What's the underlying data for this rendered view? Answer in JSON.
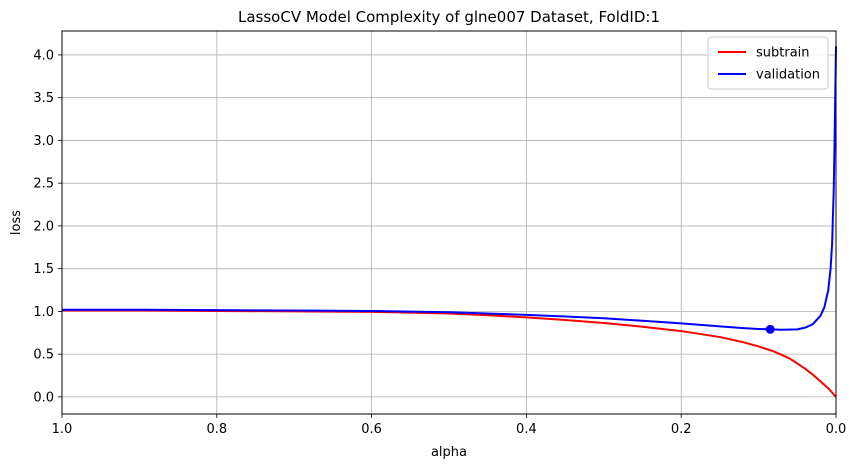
{
  "chart_data": {
    "type": "line",
    "title": "LassoCV Model Complexity of glne007 Dataset, FoldID:1",
    "xlabel": "alpha",
    "ylabel": "loss",
    "xlim": [
      1.0,
      0.0
    ],
    "ylim": [
      -0.2,
      4.28
    ],
    "x_inverted": true,
    "grid": true,
    "legend_position": "top-right",
    "xticks": [
      1.0,
      0.8,
      0.6,
      0.4,
      0.2,
      0.0
    ],
    "xtick_labels": [
      "1.0",
      "0.8",
      "0.6",
      "0.4",
      "0.2",
      "0.0"
    ],
    "yticks": [
      0.0,
      0.5,
      1.0,
      1.5,
      2.0,
      2.5,
      3.0,
      3.5,
      4.0
    ],
    "ytick_labels": [
      "0.0",
      "0.5",
      "1.0",
      "1.5",
      "2.0",
      "2.5",
      "3.0",
      "3.5",
      "4.0"
    ],
    "series": [
      {
        "name": "subtrain",
        "color": "#ff0000",
        "x": [
          1.0,
          0.9,
          0.8,
          0.7,
          0.6,
          0.5,
          0.45,
          0.4,
          0.35,
          0.3,
          0.25,
          0.2,
          0.15,
          0.12,
          0.1,
          0.08,
          0.06,
          0.05,
          0.04,
          0.03,
          0.02,
          0.01,
          0.005,
          0.0
        ],
        "y": [
          1.01,
          1.01,
          1.005,
          1.0,
          0.995,
          0.975,
          0.955,
          0.93,
          0.9,
          0.865,
          0.82,
          0.77,
          0.7,
          0.64,
          0.59,
          0.53,
          0.45,
          0.39,
          0.33,
          0.26,
          0.18,
          0.1,
          0.05,
          0.0
        ]
      },
      {
        "name": "validation",
        "color": "#0000ff",
        "x": [
          1.0,
          0.9,
          0.8,
          0.7,
          0.6,
          0.5,
          0.45,
          0.4,
          0.35,
          0.3,
          0.25,
          0.2,
          0.15,
          0.12,
          0.1,
          0.085,
          0.07,
          0.05,
          0.04,
          0.03,
          0.02,
          0.015,
          0.01,
          0.007,
          0.005,
          0.003,
          0.002,
          0.001,
          0.0
        ],
        "y": [
          1.02,
          1.02,
          1.015,
          1.01,
          1.005,
          0.99,
          0.975,
          0.96,
          0.94,
          0.92,
          0.89,
          0.86,
          0.825,
          0.805,
          0.795,
          0.79,
          0.785,
          0.79,
          0.81,
          0.85,
          0.95,
          1.05,
          1.25,
          1.5,
          1.8,
          2.4,
          2.9,
          3.5,
          4.1
        ]
      }
    ],
    "markers": [
      {
        "series": "validation",
        "x": 0.085,
        "y": 0.79,
        "color": "#0000ff"
      }
    ]
  }
}
